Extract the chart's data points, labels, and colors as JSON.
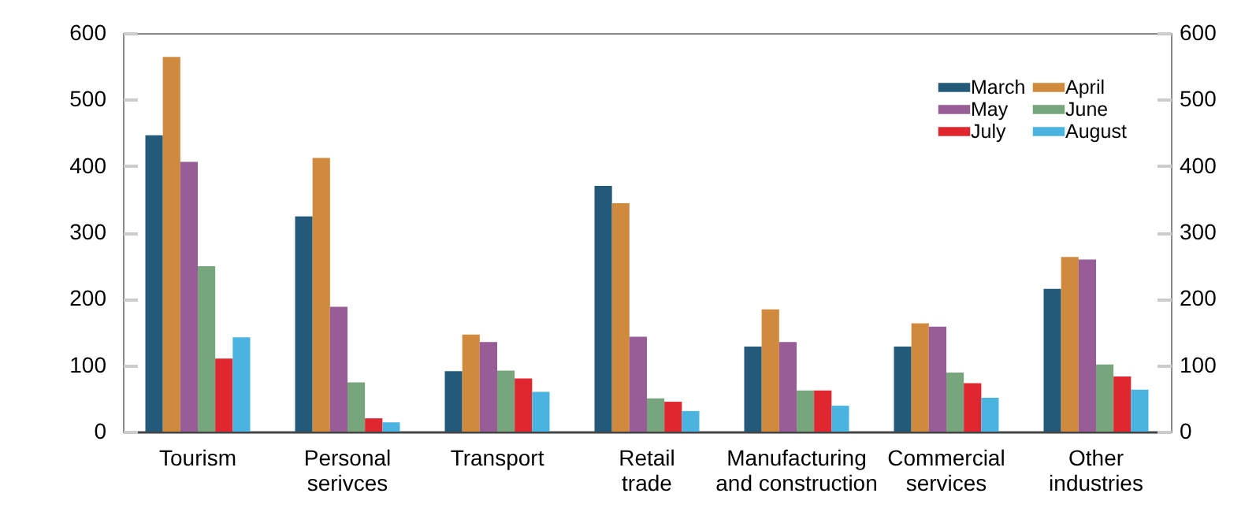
{
  "chart_data": {
    "type": "bar",
    "categories": [
      "Tourism",
      "Personal\nserivces",
      "Transport",
      "Retail\ntrade",
      "Manufacturing\nand construction",
      "Commercial\nservices",
      "Other\nindustries"
    ],
    "series": [
      {
        "name": "March",
        "color": "#235a7a",
        "values": [
          446,
          324,
          91,
          370,
          128,
          128,
          215
        ]
      },
      {
        "name": "April",
        "color": "#d08a3e",
        "values": [
          564,
          412,
          146,
          344,
          184,
          163,
          263
        ]
      },
      {
        "name": "May",
        "color": "#985c96",
        "values": [
          406,
          188,
          135,
          143,
          135,
          158,
          259
        ]
      },
      {
        "name": "June",
        "color": "#78a67c",
        "values": [
          249,
          74,
          92,
          50,
          62,
          89,
          101
        ]
      },
      {
        "name": "July",
        "color": "#e0262f",
        "values": [
          110,
          20,
          80,
          45,
          62,
          73,
          83
        ]
      },
      {
        "name": "August",
        "color": "#4bb3e0",
        "values": [
          142,
          14,
          60,
          31,
          39,
          51,
          63
        ]
      }
    ],
    "ylim": [
      0,
      600
    ],
    "yticks": [
      0,
      100,
      200,
      300,
      400,
      500,
      600
    ],
    "y2lim": [
      0,
      600
    ],
    "y2ticks": [
      0,
      100,
      200,
      300,
      400,
      500,
      600
    ],
    "legend": "top right",
    "grid": false
  }
}
